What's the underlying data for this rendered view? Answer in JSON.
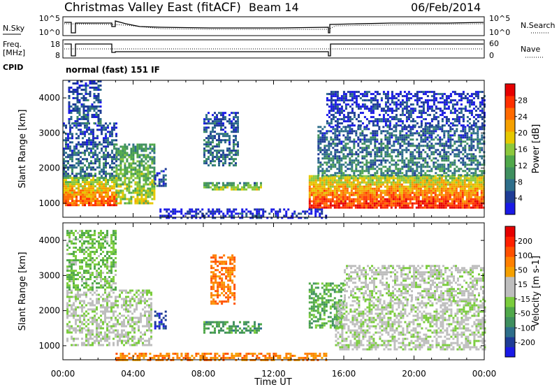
{
  "header": {
    "site_title": "Christmas Valley East (fitACF)",
    "beam": "Beam 14",
    "date": "06/Feb/2014"
  },
  "status": {
    "nsky_label": "N.Sky",
    "nsky_ticks": [
      "10^5",
      "10^0"
    ],
    "nsearch_label": "N.Search",
    "nsearch_ticks": [
      "10^5",
      "10^0"
    ],
    "freq_label_1": "Freq.",
    "freq_label_2": "[MHz]",
    "freq_ticks": [
      "18",
      "8"
    ],
    "nave_label": "Nave",
    "nave_ticks": [
      "60",
      "0"
    ],
    "cpid_label": "CPID",
    "cpid_text": "normal (fast) 151 IF"
  },
  "chart_data": [
    {
      "type": "heatmap",
      "panel": "power",
      "ylabel": "Slant Range [km]",
      "yticks": [
        1000,
        2000,
        3000,
        4000
      ],
      "ylim": [
        600,
        4500
      ],
      "xlim": [
        0,
        24
      ],
      "colorbar_label": "Power [dB]",
      "colorbar_ticks": [
        "4",
        "8",
        "12",
        "16",
        "20",
        "24",
        "28"
      ],
      "colors": [
        "#1a1ae6",
        "#1e3c96",
        "#2e6e8a",
        "#3f8f5f",
        "#50a84a",
        "#8cc83c",
        "#e6c800",
        "#f5a000",
        "#ff6a00",
        "#ff3000",
        "#e60000"
      ],
      "regions": [
        {
          "t0": 0.0,
          "t1": 3.0,
          "r0": 950,
          "r1": 1750,
          "level": 0.85
        },
        {
          "t0": 0.0,
          "t1": 3.0,
          "r0": 1750,
          "r1": 3300,
          "level": 0.25
        },
        {
          "t0": 0.3,
          "t1": 2.2,
          "r0": 3300,
          "r1": 4500,
          "level": 0.2
        },
        {
          "t0": 3.0,
          "t1": 5.2,
          "r0": 1000,
          "r1": 2700,
          "level": 0.55
        },
        {
          "t0": 5.2,
          "t1": 5.9,
          "r0": 1500,
          "r1": 2000,
          "level": 0.2
        },
        {
          "t0": 8.0,
          "t1": 11.3,
          "r0": 1400,
          "r1": 1600,
          "level": 0.55
        },
        {
          "t0": 8.0,
          "t1": 10.0,
          "r0": 2100,
          "r1": 3600,
          "level": 0.25
        },
        {
          "t0": 14.0,
          "t1": 24.0,
          "r0": 900,
          "r1": 1800,
          "level": 0.92
        },
        {
          "t0": 14.5,
          "t1": 24.0,
          "r0": 1800,
          "r1": 3200,
          "level": 0.3
        },
        {
          "t0": 15.0,
          "t1": 24.0,
          "r0": 3200,
          "r1": 4200,
          "level": 0.15
        },
        {
          "t0": 5.5,
          "t1": 15.0,
          "r0": 600,
          "r1": 850,
          "level": 0.1
        }
      ]
    },
    {
      "type": "heatmap",
      "panel": "velocity",
      "ylabel": "Slant Range [km]",
      "yticks": [
        1000,
        2000,
        3000,
        4000
      ],
      "ylim": [
        600,
        4500
      ],
      "xlabel": "Time UT",
      "xticks": [
        "00:00",
        "04:00",
        "08:00",
        "12:00",
        "16:00",
        "20:00",
        "00:00"
      ],
      "xlim": [
        0,
        24
      ],
      "colorbar_label": "Velocity [m s-1]",
      "colorbar_ticks": [
        "200",
        "100",
        "50",
        "15",
        "-15",
        "-50",
        "-100",
        "-200"
      ],
      "colors": [
        "#1a1ae6",
        "#1e3c96",
        "#2e6e8a",
        "#3f8f5f",
        "#50a84a",
        "#7acc3c",
        "#bebebe",
        "#bebebe",
        "#f5a000",
        "#ff8000",
        "#ff5000",
        "#ff2000",
        "#e60000"
      ],
      "regions": [
        {
          "t0": 0.2,
          "t1": 5.0,
          "r0": 1000,
          "r1": 2600,
          "value": 0.5
        },
        {
          "t0": 0.2,
          "t1": 3.0,
          "r0": 2600,
          "r1": 4300,
          "value": 0.4
        },
        {
          "t0": 5.2,
          "t1": 5.9,
          "r0": 1500,
          "r1": 2000,
          "value": 0.1
        },
        {
          "t0": 8.4,
          "t1": 9.8,
          "r0": 2200,
          "r1": 3600,
          "value": 0.75
        },
        {
          "t0": 8.0,
          "t1": 11.3,
          "r0": 1400,
          "r1": 1700,
          "value": 0.3
        },
        {
          "t0": 14.0,
          "t1": 16.0,
          "r0": 1500,
          "r1": 2800,
          "value": 0.35
        },
        {
          "t0": 15.5,
          "t1": 24.0,
          "r0": 900,
          "r1": 2300,
          "value": 0.5
        },
        {
          "t0": 16.0,
          "t1": 24.0,
          "r0": 2300,
          "r1": 3300,
          "value": 0.5
        },
        {
          "t0": 3.0,
          "t1": 15.0,
          "r0": 600,
          "r1": 800,
          "value": 0.72
        }
      ]
    }
  ]
}
